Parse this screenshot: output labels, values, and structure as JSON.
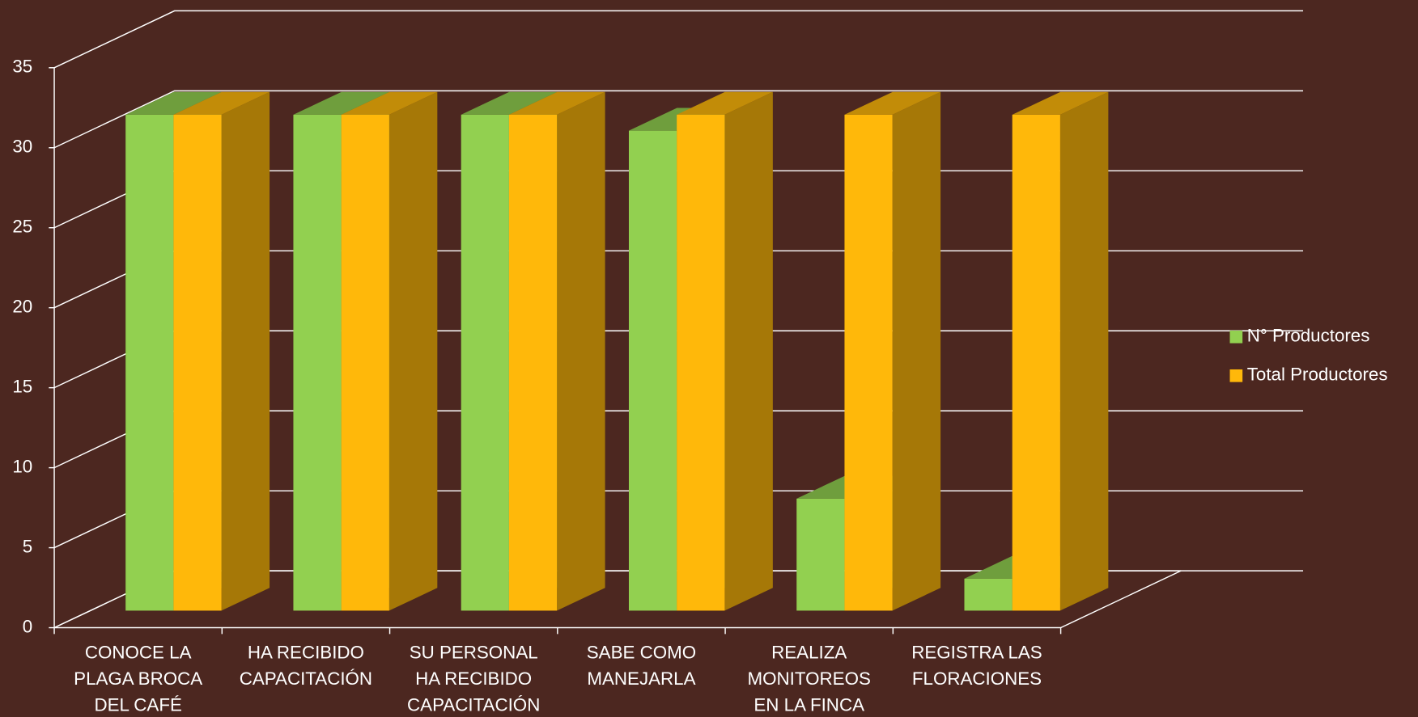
{
  "chart_data": {
    "type": "bar3d",
    "categories": [
      "CONOCE  LA PLAGA BROCA DEL CAFÉ",
      "HA RECIBIDO CAPACITACIÓN",
      "SU PERSONAL HA RECIBIDO CAPACITACIÓN",
      "SABE COMO MANEJARLA",
      "REALIZA MONITOREOS EN LA FINCA",
      "REGISTRA LAS FLORACIONES"
    ],
    "series": [
      {
        "name": "N° Productores",
        "color": "#92d050",
        "values": [
          31,
          31,
          31,
          30,
          7,
          2
        ]
      },
      {
        "name": "Total Productores",
        "color": "#ffb80a",
        "values": [
          31,
          31,
          31,
          31,
          31,
          31
        ]
      }
    ],
    "ylim": [
      0,
      35
    ],
    "yticks": [
      0,
      5,
      10,
      15,
      20,
      25,
      30,
      35
    ],
    "grid": true,
    "legend": "right"
  }
}
